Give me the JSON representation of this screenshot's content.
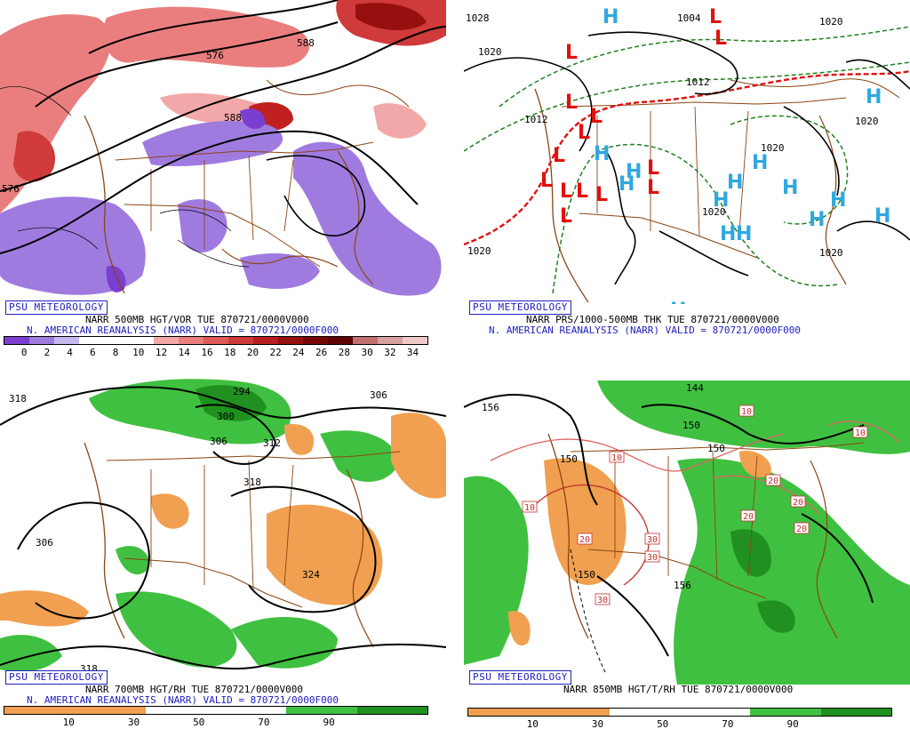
{
  "psu_label": "PSU METEOROLOGY",
  "panels": [
    {
      "line1": "NARR 500MB HGT/VOR TUE 870721/0000V000",
      "line2": "N. AMERICAN REANALYSIS (NARR) VALID = 870721/0000F000",
      "colorbar": {
        "ticks": [
          "0",
          "2",
          "4",
          "6",
          "8",
          "10",
          "12",
          "14",
          "16",
          "18",
          "20",
          "22",
          "24",
          "26",
          "28",
          "30",
          "32",
          "34"
        ],
        "colors": [
          "#7a3fd0",
          "#9f7be0",
          "#c6b8ee",
          "#ffffff",
          "#ffffff",
          "#ffffff",
          "#f2a8a8",
          "#ea7e7e",
          "#e05a5a",
          "#d03a3a",
          "#b82020",
          "#961010",
          "#780808",
          "#600000",
          "#c07070",
          "#d8a0a0",
          "#f0c8c8"
        ]
      },
      "contour_labels": [
        "576",
        "588",
        "588",
        "576"
      ]
    },
    {
      "line1": "NARR PRS/1000-500MB THK TUE 870721/0000V000",
      "line2": "N. AMERICAN REANALYSIS (NARR) VALID = 870721/0000F000",
      "contour_labels": [
        "1028",
        "1020",
        "1004",
        "1020",
        "1012",
        "1012",
        "1020",
        "1020",
        "1020",
        "1020",
        "1020"
      ],
      "high_symbol": "H",
      "low_symbol": "L"
    },
    {
      "line1": "NARR 700MB HGT/RH TUE 870721/0000V000",
      "line2": "N. AMERICAN REANALYSIS (NARR) VALID = 870721/0000F000",
      "colorbar": {
        "ticks": [
          "10",
          "30",
          "50",
          "70",
          "90"
        ],
        "colors": [
          "#f0a050",
          "#f0a050",
          "#ffffff",
          "#ffffff",
          "#40c040",
          "#209020"
        ]
      },
      "contour_labels": [
        "318",
        "294",
        "300",
        "306",
        "306",
        "312",
        "318",
        "306",
        "324",
        "318"
      ]
    },
    {
      "line1": "NARR 850MB HGT/T/RH TUE 870721/0000V000",
      "colorbar": {
        "ticks": [
          "10",
          "30",
          "50",
          "70",
          "90"
        ],
        "colors": [
          "#f0a050",
          "#f0a050",
          "#ffffff",
          "#ffffff",
          "#40c040",
          "#209020"
        ]
      },
      "contour_labels": [
        "156",
        "150",
        "144",
        "150",
        "150",
        "156",
        "150"
      ],
      "temp_labels": [
        "10",
        "10",
        "10",
        "20",
        "20",
        "20",
        "20",
        "10",
        "20",
        "30",
        "30",
        "30"
      ]
    }
  ]
}
